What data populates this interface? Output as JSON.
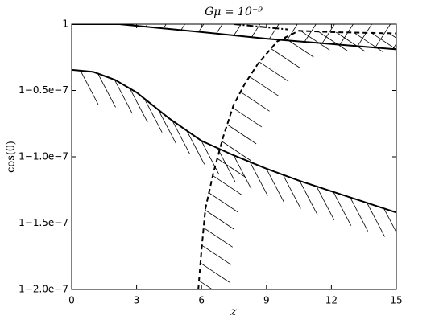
{
  "chart_data": {
    "type": "line",
    "title": "Gμ = 10⁻⁹",
    "x_label": "z",
    "y_label": "cos(θ)",
    "xlim": [
      0,
      15
    ],
    "xticks": [
      0,
      3,
      6,
      9,
      12,
      15
    ],
    "ylim": [
      0.9999998,
      1
    ],
    "yticks": [
      {
        "value": 1,
        "label": "1"
      },
      {
        "value": 0.99999995,
        "label": "1−0.5e−7"
      },
      {
        "value": 0.9999999,
        "label": "1−1.0e−7"
      },
      {
        "value": 0.99999985,
        "label": "1−1.5e−7"
      },
      {
        "value": 0.9999998,
        "label": "1−2.0e−7"
      }
    ],
    "grid": false,
    "series": [
      {
        "color": "#000000",
        "style": "solid",
        "x": [
          0,
          1,
          2,
          3,
          4.5,
          6,
          7.5,
          9,
          10.5,
          12,
          13.5,
          15
        ],
        "values": [
          0.9999999655,
          0.999999964,
          0.999999958,
          0.9999999485,
          0.999999929,
          0.999999912,
          0.999999901,
          0.999999891,
          0.999999882,
          0.999999874,
          0.999999866,
          0.999999858
        ]
      },
      {
        "color": "#000000",
        "style": "solid",
        "x": [
          0,
          2.2,
          6,
          9,
          12,
          15
        ],
        "values": [
          1,
          1,
          0.999999994,
          0.999999989,
          0.999999985,
          0.999999981
        ]
      },
      {
        "color": "#000000",
        "style": "dashed",
        "x": [
          5.85,
          6.0,
          6.18,
          6.55,
          7.0,
          7.48,
          8.0,
          8.6,
          9.5,
          10.5,
          12,
          15
        ],
        "values": [
          0.9999998,
          0.99999983,
          0.999999861,
          0.999999888,
          0.999999915,
          0.999999939,
          0.999999955,
          0.99999997,
          0.999999987,
          0.999999995,
          0.999999994,
          0.999999993
        ]
      },
      {
        "color": "#000000",
        "style": "dashdot",
        "x": [
          7.5,
          10
        ],
        "values": [
          1,
          0.999999996
        ]
      }
    ]
  }
}
